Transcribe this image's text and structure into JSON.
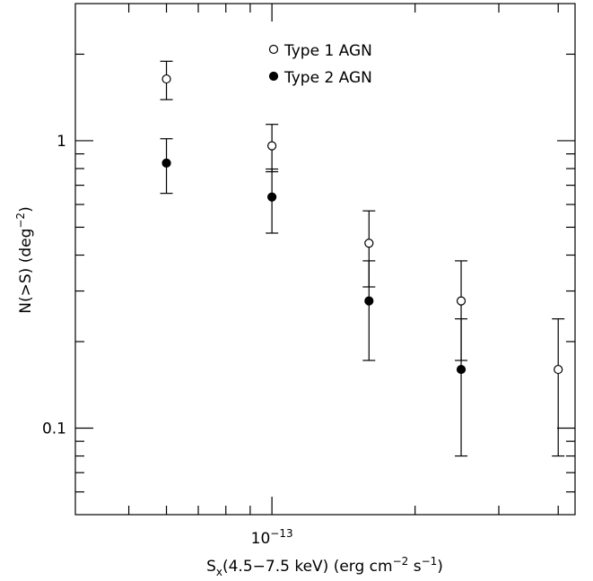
{
  "chart_data": {
    "type": "scatter",
    "x_label": [
      "S",
      "x",
      "(4.5−7.5 keV) (erg cm",
      "−2",
      " s",
      "−1",
      ")"
    ],
    "y_label": [
      "N(>S) (deg",
      "−2",
      ")"
    ],
    "x_log": true,
    "y_log": true,
    "xlim": [
      3.86e-14,
      4.34e-13
    ],
    "ylim": [
      0.05,
      3
    ],
    "xticks": [
      {
        "value": 1e-13,
        "label": "10",
        "exponent": "−13"
      }
    ],
    "x_minor_ticks": [
      5e-14,
      6e-14,
      7e-14,
      8e-14,
      9e-14,
      2e-13,
      3e-13,
      4e-13
    ],
    "yticks": [
      0.1,
      1
    ],
    "y_minor_ticks": [
      0.06,
      0.07,
      0.08,
      0.09,
      0.2,
      0.3,
      0.4,
      0.5,
      0.6,
      0.7,
      0.8,
      0.9,
      2
    ],
    "legend": "top-center",
    "series": [
      {
        "name": "Type 1 AGN",
        "color": "#000000",
        "marker": "open",
        "x": [
          6e-14,
          1e-13,
          1.6e-13,
          2.5e-13,
          4e-13
        ],
        "values": [
          1.64,
          0.96,
          0.44,
          0.277,
          0.16
        ],
        "errors": [
          0.25,
          0.18,
          0.13,
          0.105,
          0.08
        ]
      },
      {
        "name": "Type 2 AGN",
        "color": "#000000",
        "marker": "filled",
        "x": [
          6e-14,
          1e-13,
          1.6e-13,
          2.5e-13
        ],
        "values": [
          0.836,
          0.637,
          0.277,
          0.16
        ],
        "errors": [
          0.18,
          0.16,
          0.105,
          0.08
        ]
      }
    ]
  }
}
